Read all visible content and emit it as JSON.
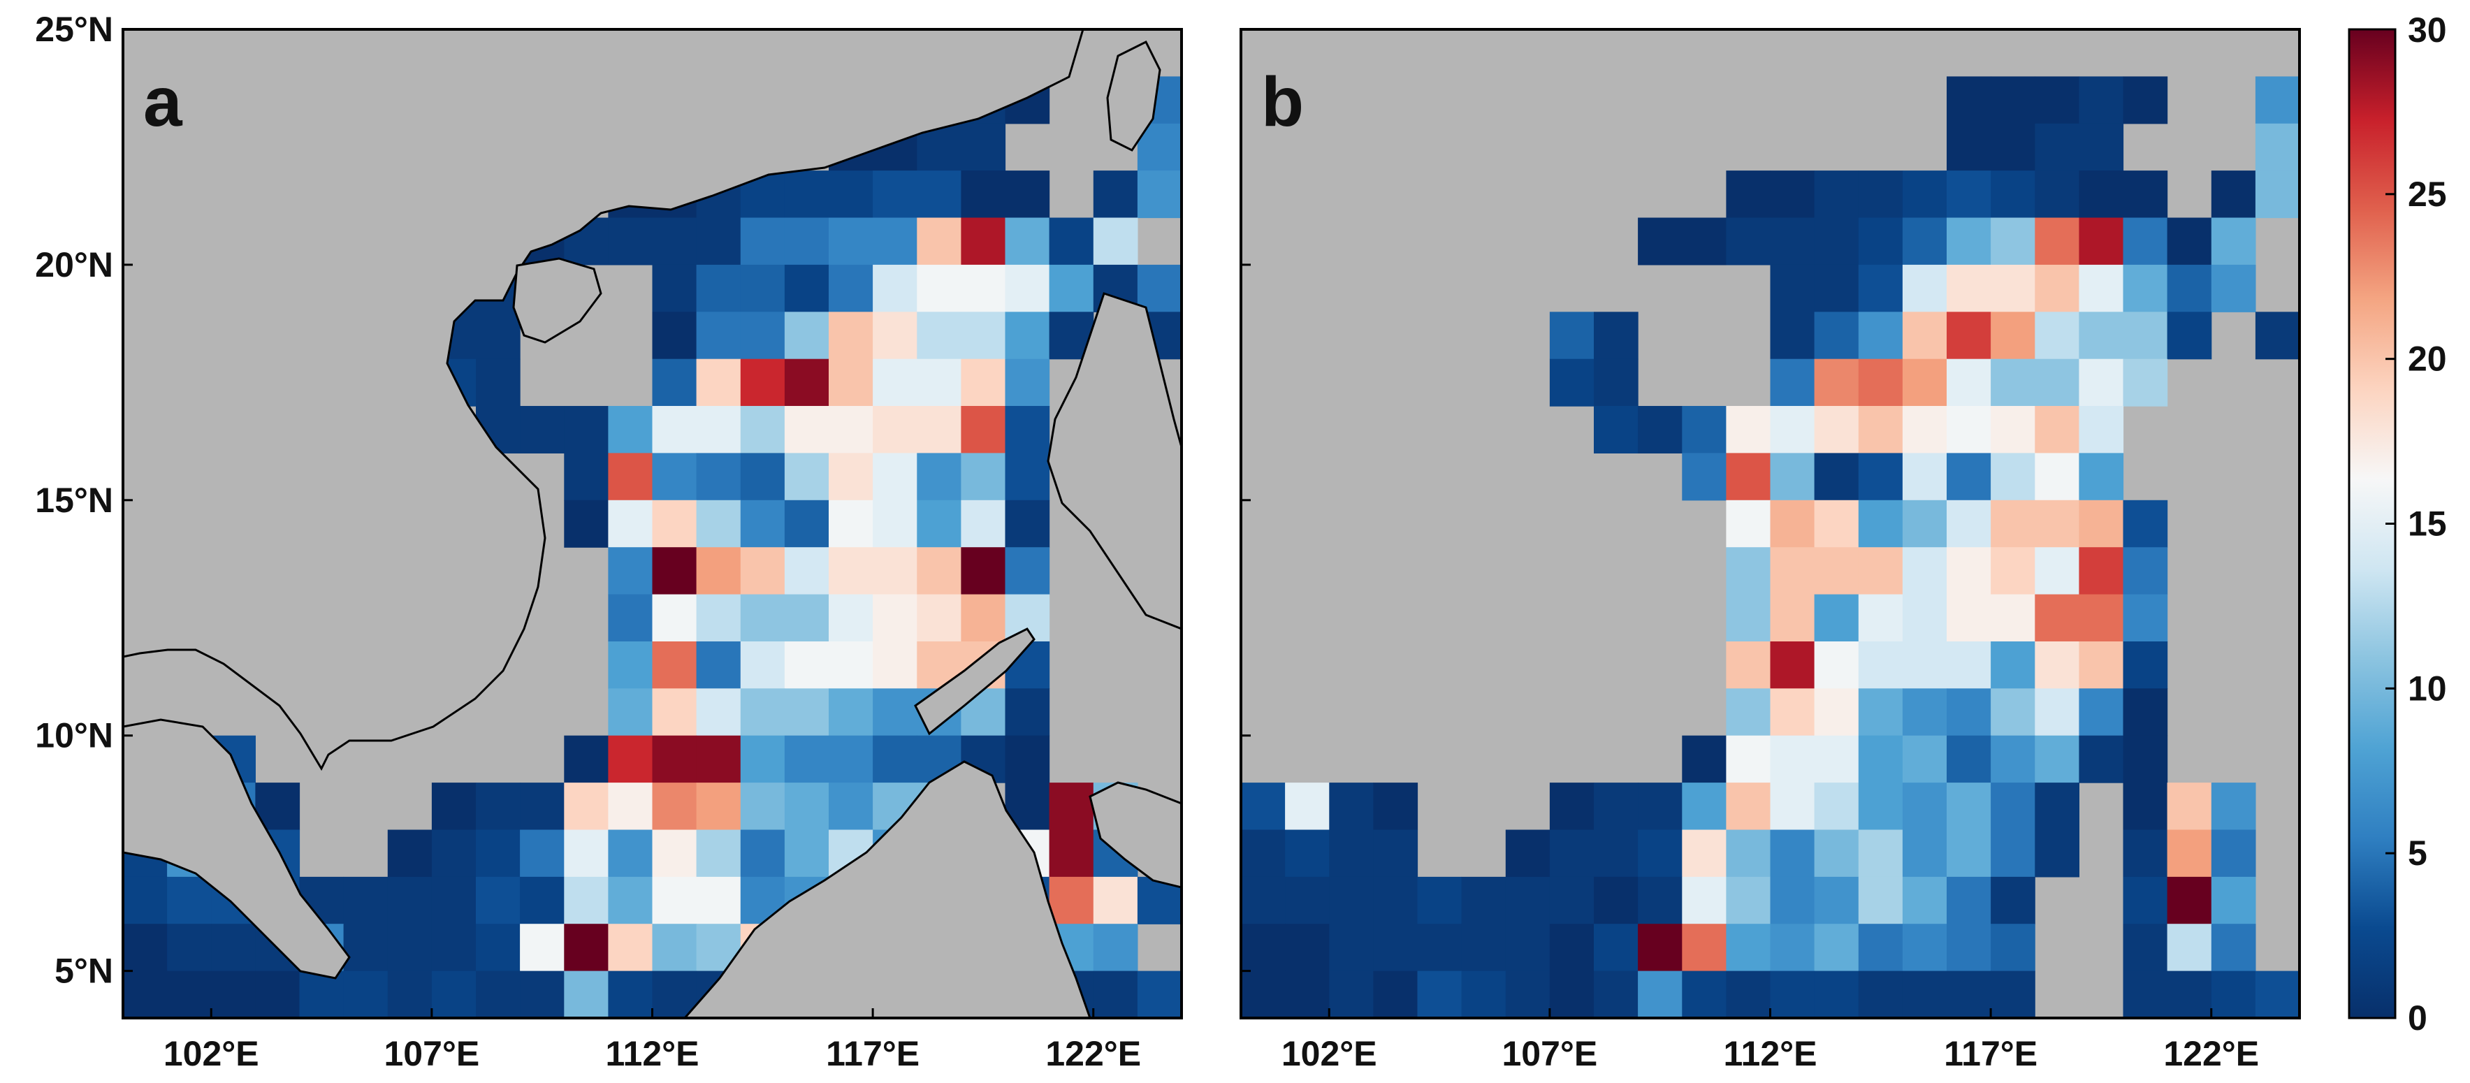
{
  "figure": {
    "colorbar": {
      "min": 0,
      "max": 30,
      "ticks": [
        "0",
        "5",
        "10",
        "15",
        "20",
        "25",
        "30"
      ],
      "colormap": [
        "#08306b",
        "#0a4a90",
        "#2f7fc1",
        "#4fa3d4",
        "#8cc4e0",
        "#cfe6f2",
        "#f7f7f7",
        "#fcd4c0",
        "#f4a582",
        "#e0604d",
        "#c8202b",
        "#67001f"
      ]
    },
    "land_color": "#b5b5b5",
    "coastline_color": "#000000"
  },
  "chart_data": [
    {
      "type": "heatmap",
      "panel_label": "a",
      "lon_range": [
        100,
        124
      ],
      "lat_range": [
        4,
        25
      ],
      "x_ticks": [
        "102°E",
        "107°E",
        "112°E",
        "117°E",
        "122°E"
      ],
      "y_ticks": [
        "25°N",
        "20°N",
        "15°N",
        "10°N",
        "5°N"
      ],
      "grid_origin": {
        "lon0": 100,
        "lat_top": 25,
        "cell_deg": 1
      },
      "grid": [
        [
          null,
          null,
          null,
          null,
          null,
          null,
          null,
          null,
          null,
          null,
          null,
          null,
          null,
          null,
          null,
          null,
          null,
          null,
          null,
          null,
          null,
          null,
          null,
          null
        ],
        [
          null,
          null,
          null,
          null,
          null,
          null,
          null,
          null,
          null,
          null,
          null,
          null,
          null,
          null,
          null,
          null,
          0,
          0,
          0,
          1,
          0,
          null,
          null,
          5
        ],
        [
          null,
          null,
          null,
          null,
          null,
          null,
          null,
          null,
          null,
          null,
          null,
          null,
          null,
          null,
          null,
          null,
          0,
          0,
          1,
          1,
          null,
          null,
          null,
          6
        ],
        [
          null,
          null,
          null,
          null,
          null,
          null,
          null,
          null,
          null,
          null,
          null,
          0,
          0,
          1,
          2,
          2,
          2,
          3,
          3,
          0,
          0,
          null,
          1,
          7
        ],
        [
          null,
          null,
          null,
          null,
          null,
          null,
          null,
          null,
          null,
          0,
          1,
          1,
          1,
          1,
          5,
          5,
          6,
          6,
          20,
          28,
          9,
          2,
          13
        ],
        [
          null,
          null,
          null,
          null,
          null,
          null,
          null,
          1,
          1,
          null,
          null,
          null,
          1,
          4,
          4,
          2,
          5,
          14,
          16,
          16,
          15,
          8,
          1,
          5
        ],
        [
          null,
          null,
          null,
          null,
          null,
          null,
          null,
          1,
          1,
          null,
          null,
          null,
          0,
          5,
          5,
          11,
          20,
          18,
          13,
          13,
          8,
          1,
          null,
          1
        ],
        [
          null,
          null,
          null,
          null,
          null,
          null,
          null,
          2,
          1,
          null,
          null,
          null,
          4,
          19,
          27,
          29,
          20,
          15,
          15,
          19,
          7,
          null,
          null,
          null
        ],
        [
          null,
          null,
          null,
          null,
          null,
          null,
          null,
          null,
          1,
          1,
          1,
          8,
          15,
          15,
          12,
          17,
          17,
          18,
          18,
          25,
          3,
          null,
          null,
          null
        ],
        [
          null,
          null,
          null,
          null,
          null,
          null,
          null,
          null,
          null,
          null,
          1,
          25,
          6,
          5,
          4,
          12,
          18,
          15,
          7,
          10,
          3,
          null,
          null,
          null
        ],
        [
          null,
          null,
          null,
          null,
          null,
          null,
          null,
          null,
          null,
          null,
          0,
          15,
          19,
          12,
          6,
          4,
          16,
          15,
          8,
          14,
          1,
          null,
          null,
          null
        ],
        [
          null,
          null,
          null,
          null,
          null,
          null,
          null,
          null,
          null,
          null,
          null,
          6,
          30,
          22,
          20,
          14,
          18,
          18,
          20,
          30,
          5,
          null,
          null,
          null
        ],
        [
          null,
          null,
          null,
          null,
          null,
          null,
          null,
          null,
          null,
          null,
          null,
          5,
          16,
          13,
          11,
          11,
          15,
          17,
          18,
          21,
          13,
          null,
          null,
          null
        ],
        [
          null,
          null,
          null,
          null,
          null,
          null,
          null,
          null,
          null,
          null,
          null,
          8,
          24,
          5,
          14,
          16,
          16,
          17,
          20,
          20,
          3,
          null,
          null,
          null
        ],
        [
          null,
          null,
          null,
          null,
          null,
          null,
          null,
          null,
          null,
          null,
          null,
          9,
          19,
          14,
          11,
          11,
          9,
          7,
          7,
          10,
          1,
          null,
          null,
          null
        ],
        [
          1,
          14,
          3,
          null,
          null,
          null,
          null,
          null,
          null,
          null,
          0,
          27,
          29,
          29,
          8,
          6,
          6,
          4,
          4,
          1,
          0,
          null,
          null,
          null
        ],
        [
          1,
          6,
          5,
          0,
          null,
          null,
          null,
          0,
          1,
          1,
          19,
          17,
          23,
          22,
          10,
          9,
          7,
          10,
          10,
          null,
          0,
          29,
          10,
          null
        ],
        [
          2,
          7,
          10,
          3,
          null,
          null,
          0,
          1,
          2,
          5,
          15,
          7,
          17,
          12,
          5,
          9,
          13,
          7,
          1,
          null,
          16,
          29,
          4,
          null
        ],
        [
          2,
          3,
          3,
          3,
          1,
          1,
          1,
          1,
          3,
          2,
          13,
          9,
          16,
          16,
          6,
          7,
          7,
          9,
          null,
          null,
          3,
          24,
          18,
          3
        ],
        [
          0,
          1,
          1,
          1,
          6,
          1,
          1,
          1,
          2,
          16,
          30,
          19,
          10,
          11,
          19,
          3,
          5,
          6,
          null,
          null,
          1,
          8,
          7,
          null
        ],
        [
          0,
          0,
          0,
          0,
          2,
          2,
          1,
          2,
          1,
          1,
          10,
          2,
          1,
          1,
          3,
          4,
          3,
          2,
          null,
          null,
          0,
          1,
          1,
          3
        ],
        [
          0,
          0,
          0,
          0,
          0,
          0,
          0,
          0,
          0,
          0,
          0,
          0,
          0,
          0,
          0,
          0,
          0,
          0,
          0,
          0,
          0,
          0,
          0,
          0
        ]
      ]
    },
    {
      "type": "heatmap",
      "panel_label": "b",
      "lon_range": [
        100,
        124
      ],
      "lat_range": [
        4,
        25
      ],
      "x_ticks": [
        "102°E",
        "107°E",
        "112°E",
        "117°E",
        "122°E"
      ],
      "y_ticks": [
        "25°N",
        "20°N",
        "15°N",
        "10°N",
        "5°N"
      ],
      "grid_origin": {
        "lon0": 100,
        "lat_top": 25,
        "cell_deg": 1
      },
      "grid": [
        [
          null,
          null,
          null,
          null,
          null,
          null,
          null,
          null,
          null,
          null,
          null,
          null,
          null,
          null,
          null,
          null,
          null,
          null,
          null,
          null,
          null,
          null,
          null,
          null
        ],
        [
          null,
          null,
          null,
          null,
          null,
          null,
          null,
          null,
          null,
          null,
          null,
          null,
          null,
          null,
          null,
          null,
          0,
          0,
          0,
          1,
          0,
          null,
          null,
          7
        ],
        [
          null,
          null,
          null,
          null,
          null,
          null,
          null,
          null,
          null,
          null,
          null,
          null,
          null,
          null,
          null,
          null,
          0,
          0,
          1,
          1,
          null,
          null,
          null,
          10
        ],
        [
          null,
          null,
          null,
          null,
          null,
          null,
          null,
          null,
          null,
          null,
          null,
          0,
          0,
          1,
          1,
          2,
          3,
          2,
          1,
          0,
          0,
          null,
          0,
          10
        ],
        [
          null,
          null,
          null,
          null,
          null,
          null,
          null,
          null,
          null,
          0,
          0,
          1,
          1,
          1,
          2,
          4,
          9,
          11,
          24,
          28,
          5,
          0,
          9
        ],
        [
          null,
          null,
          null,
          null,
          null,
          null,
          null,
          null,
          null,
          null,
          null,
          null,
          1,
          1,
          3,
          14,
          18,
          18,
          20,
          15,
          9,
          4,
          7
        ],
        [
          null,
          null,
          null,
          null,
          null,
          null,
          null,
          4,
          1,
          null,
          null,
          null,
          1,
          4,
          7,
          20,
          26,
          22,
          13,
          11,
          11,
          2,
          null,
          1
        ],
        [
          null,
          null,
          null,
          null,
          null,
          null,
          null,
          2,
          1,
          null,
          null,
          null,
          5,
          23,
          24,
          22,
          15,
          11,
          11,
          15,
          12,
          null,
          null,
          null
        ],
        [
          null,
          null,
          null,
          null,
          null,
          null,
          null,
          null,
          2,
          1,
          4,
          17,
          15,
          18,
          20,
          17,
          16,
          17,
          20,
          14,
          null,
          null,
          null,
          null
        ],
        [
          null,
          null,
          null,
          null,
          null,
          null,
          null,
          null,
          null,
          null,
          5,
          25,
          10,
          1,
          3,
          14,
          5,
          13,
          16,
          8,
          null,
          null,
          null,
          null
        ],
        [
          null,
          null,
          null,
          null,
          null,
          null,
          null,
          null,
          null,
          null,
          null,
          16,
          21,
          19,
          8,
          10,
          14,
          20,
          20,
          21,
          3,
          null,
          null,
          null
        ],
        [
          null,
          null,
          null,
          null,
          null,
          null,
          null,
          null,
          null,
          null,
          null,
          11,
          20,
          20,
          20,
          14,
          17,
          19,
          15,
          26,
          5,
          null,
          null,
          null
        ],
        [
          null,
          null,
          null,
          null,
          null,
          null,
          null,
          null,
          null,
          null,
          null,
          11,
          20,
          8,
          15,
          14,
          17,
          17,
          24,
          24,
          6,
          null,
          null,
          null
        ],
        [
          null,
          null,
          null,
          null,
          null,
          null,
          null,
          null,
          null,
          null,
          null,
          20,
          28,
          16,
          14,
          14,
          14,
          8,
          18,
          20,
          2,
          null,
          null,
          null
        ],
        [
          null,
          null,
          null,
          null,
          null,
          null,
          null,
          null,
          null,
          null,
          null,
          11,
          19,
          17,
          9,
          7,
          6,
          11,
          14,
          6,
          0,
          null,
          null,
          null
        ],
        [
          null,
          null,
          null,
          null,
          null,
          null,
          null,
          null,
          null,
          null,
          0,
          16,
          15,
          15,
          8,
          9,
          4,
          7,
          9,
          1,
          0,
          null,
          null,
          null
        ],
        [
          3,
          15,
          1,
          0,
          null,
          null,
          null,
          0,
          1,
          1,
          8,
          20,
          15,
          13,
          8,
          7,
          9,
          5,
          1,
          null,
          0,
          20,
          7,
          null
        ],
        [
          1,
          2,
          1,
          1,
          null,
          null,
          0,
          1,
          1,
          2,
          18,
          10,
          6,
          10,
          12,
          7,
          9,
          5,
          1,
          null,
          1,
          22,
          5,
          null
        ],
        [
          1,
          1,
          1,
          1,
          2,
          1,
          1,
          1,
          0,
          1,
          15,
          11,
          6,
          7,
          12,
          9,
          5,
          1,
          null,
          null,
          2,
          30,
          8,
          null
        ],
        [
          0,
          0,
          1,
          1,
          1,
          1,
          1,
          0,
          2,
          30,
          24,
          8,
          7,
          9,
          5,
          6,
          5,
          4,
          null,
          null,
          1,
          13,
          5,
          null
        ],
        [
          0,
          0,
          1,
          0,
          3,
          2,
          1,
          0,
          1,
          7,
          2,
          1,
          2,
          2,
          1,
          1,
          1,
          1,
          null,
          null,
          1,
          1,
          2,
          3
        ],
        [
          0,
          0,
          0,
          0,
          0,
          0,
          0,
          0,
          0,
          0,
          0,
          0,
          0,
          0,
          0,
          0,
          0,
          0,
          0,
          0,
          0,
          0,
          0,
          0
        ]
      ]
    }
  ]
}
